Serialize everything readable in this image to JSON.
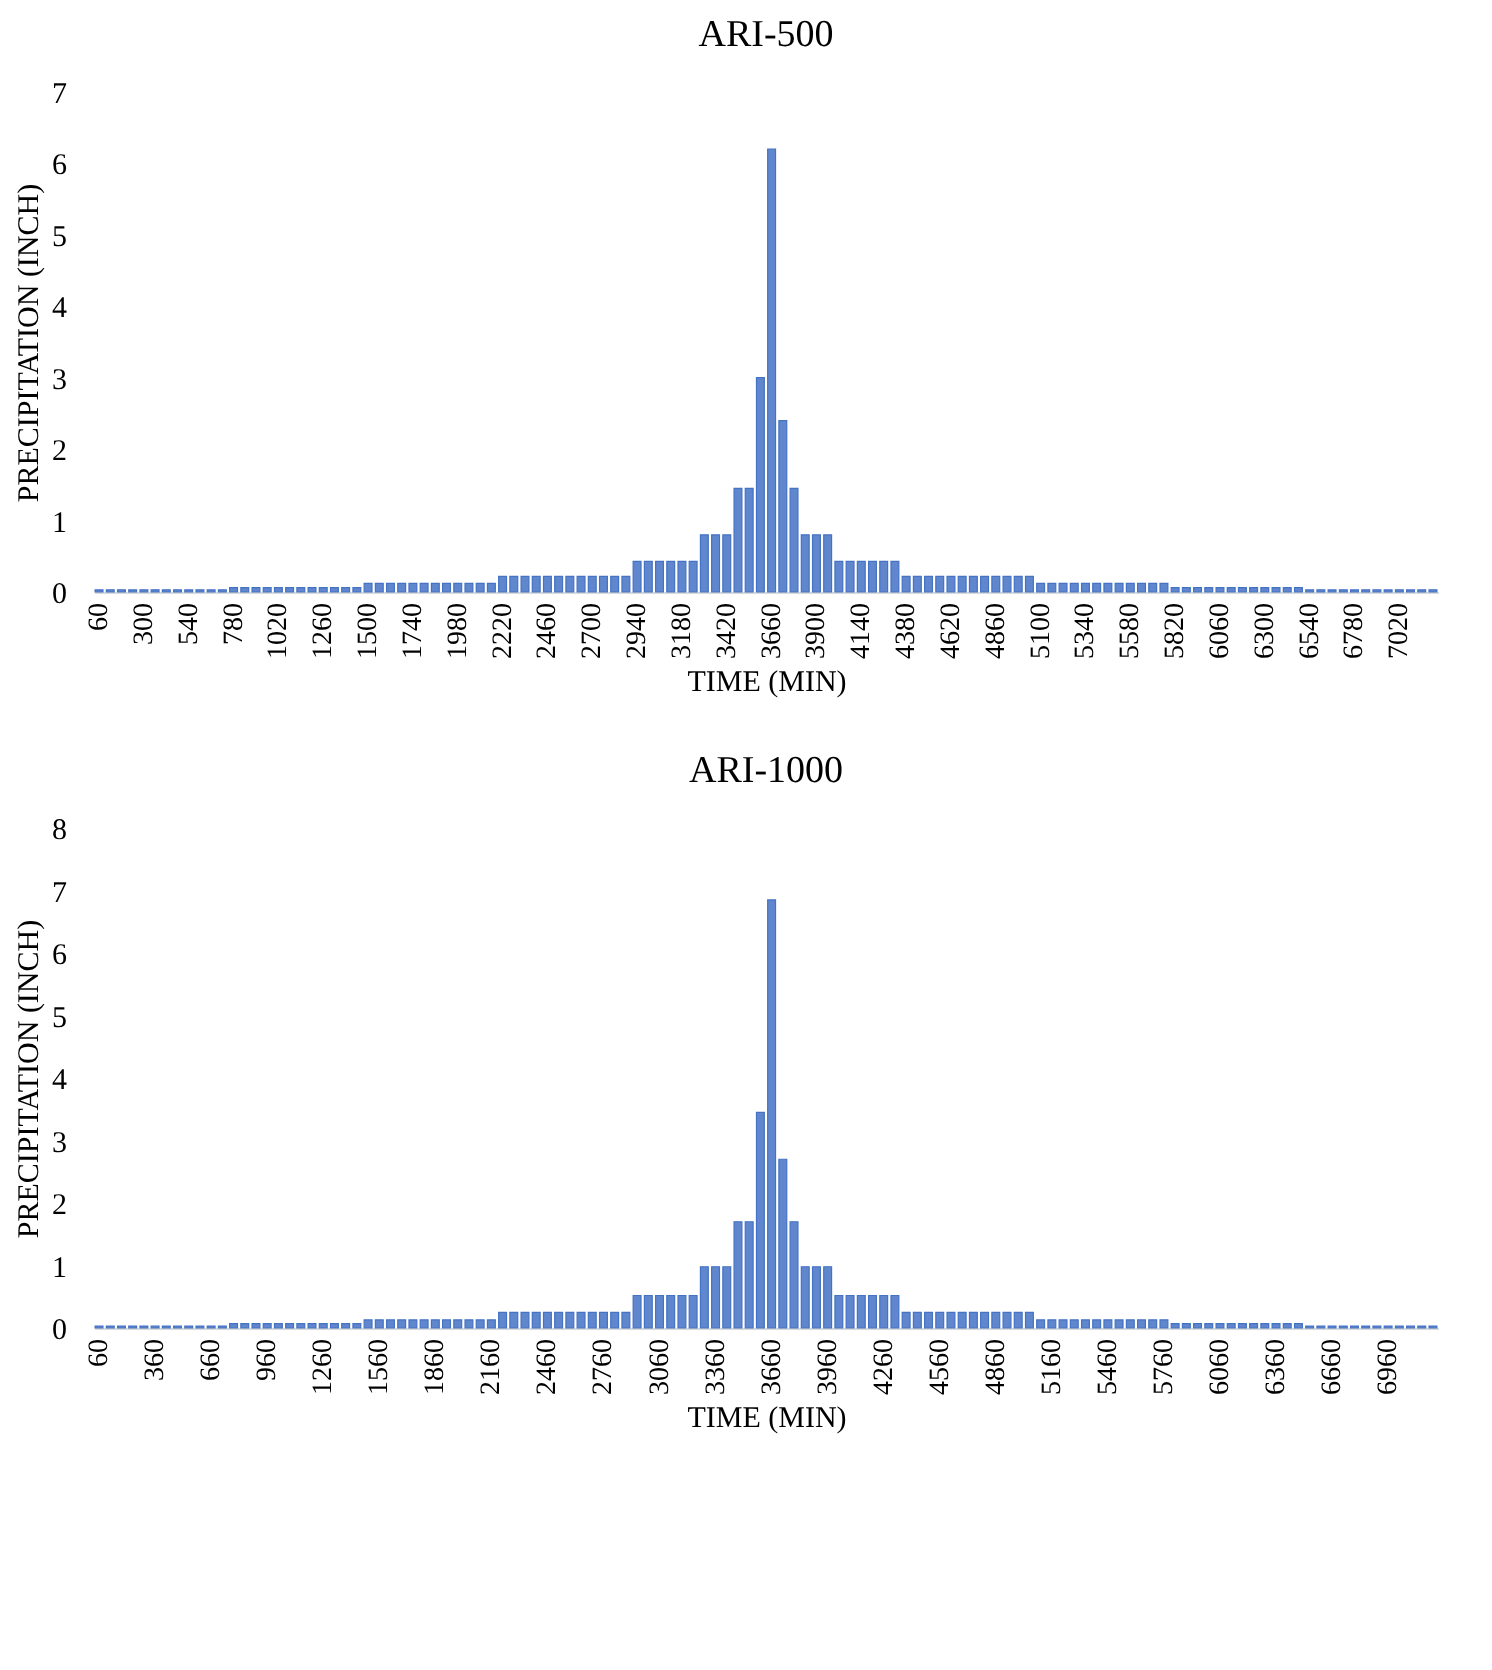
{
  "chart_data": [
    {
      "type": "bar",
      "title": "ARI-500",
      "xlabel": "TIME (MIN)",
      "ylabel": "PRECIPITATION (INCH)",
      "color": "#4472c4",
      "ylim": [
        0,
        7
      ],
      "yticks": [
        0,
        1,
        2,
        3,
        4,
        5,
        6,
        7
      ],
      "categories": [
        "60",
        null,
        null,
        null,
        "300",
        null,
        null,
        null,
        "540",
        null,
        null,
        null,
        "780",
        null,
        null,
        null,
        "1020",
        null,
        null,
        null,
        "1260",
        null,
        null,
        null,
        "1500",
        null,
        null,
        null,
        "1740",
        null,
        null,
        null,
        "1980",
        null,
        null,
        null,
        "2220",
        null,
        null,
        null,
        "2460",
        null,
        null,
        null,
        "2700",
        null,
        null,
        null,
        "2940",
        null,
        null,
        null,
        "3180",
        null,
        null,
        null,
        "3420",
        null,
        null,
        null,
        "3660",
        null,
        null,
        null,
        "3900",
        null,
        null,
        null,
        "4140",
        null,
        null,
        null,
        "4380",
        null,
        null,
        null,
        "4620",
        null,
        null,
        null,
        "4860",
        null,
        null,
        null,
        "5100",
        null,
        null,
        null,
        "5340",
        null,
        null,
        null,
        "5580",
        null,
        null,
        null,
        "5820",
        null,
        null,
        null,
        "6060",
        null,
        null,
        null,
        "6300",
        null,
        null,
        null,
        "6540",
        null,
        null,
        null,
        "6780",
        null,
        null,
        null,
        "7020",
        null,
        null,
        null
      ],
      "values": [
        0.03,
        0.03,
        0.03,
        0.03,
        0.03,
        0.03,
        0.03,
        0.03,
        0.03,
        0.03,
        0.03,
        0.03,
        0.06,
        0.06,
        0.06,
        0.06,
        0.06,
        0.06,
        0.06,
        0.06,
        0.06,
        0.06,
        0.06,
        0.06,
        0.12,
        0.12,
        0.12,
        0.12,
        0.12,
        0.12,
        0.12,
        0.12,
        0.12,
        0.12,
        0.12,
        0.12,
        0.22,
        0.22,
        0.22,
        0.22,
        0.22,
        0.22,
        0.22,
        0.22,
        0.22,
        0.22,
        0.22,
        0.22,
        0.43,
        0.43,
        0.43,
        0.43,
        0.43,
        0.43,
        0.8,
        0.8,
        0.8,
        1.45,
        1.45,
        3,
        6.2,
        2.4,
        1.45,
        0.8,
        0.8,
        0.8,
        0.43,
        0.43,
        0.43,
        0.43,
        0.43,
        0.43,
        0.22,
        0.22,
        0.22,
        0.22,
        0.22,
        0.22,
        0.22,
        0.22,
        0.22,
        0.22,
        0.22,
        0.22,
        0.12,
        0.12,
        0.12,
        0.12,
        0.12,
        0.12,
        0.12,
        0.12,
        0.12,
        0.12,
        0.12,
        0.12,
        0.06,
        0.06,
        0.06,
        0.06,
        0.06,
        0.06,
        0.06,
        0.06,
        0.06,
        0.06,
        0.06,
        0.06,
        0.03,
        0.03,
        0.03,
        0.03,
        0.03,
        0.03,
        0.03,
        0.03,
        0.03,
        0.03,
        0.03,
        0.03
      ]
    },
    {
      "type": "bar",
      "title": "ARI-1000",
      "xlabel": "TIME (MIN)",
      "ylabel": "PRECIPITATION (INCH)",
      "color": "#4472c4",
      "ylim": [
        0,
        8
      ],
      "yticks": [
        0,
        1,
        2,
        3,
        4,
        5,
        6,
        7,
        8
      ],
      "categories": [
        "60",
        null,
        null,
        null,
        null,
        "360",
        null,
        null,
        null,
        null,
        "660",
        null,
        null,
        null,
        null,
        "960",
        null,
        null,
        null,
        null,
        "1260",
        null,
        null,
        null,
        null,
        "1560",
        null,
        null,
        null,
        null,
        "1860",
        null,
        null,
        null,
        null,
        "2160",
        null,
        null,
        null,
        null,
        "2460",
        null,
        null,
        null,
        null,
        "2760",
        null,
        null,
        null,
        null,
        "3060",
        null,
        null,
        null,
        null,
        "3360",
        null,
        null,
        null,
        null,
        "3660",
        null,
        null,
        null,
        null,
        "3960",
        null,
        null,
        null,
        null,
        "4260",
        null,
        null,
        null,
        null,
        "4560",
        null,
        null,
        null,
        null,
        "4860",
        null,
        null,
        null,
        null,
        "5160",
        null,
        null,
        null,
        null,
        "5460",
        null,
        null,
        null,
        null,
        "5760",
        null,
        null,
        null,
        null,
        "6060",
        null,
        null,
        null,
        null,
        "6360",
        null,
        null,
        null,
        null,
        "6660",
        null,
        null,
        null,
        null,
        "6960",
        null,
        null,
        null,
        null
      ],
      "values": [
        0.03,
        0.03,
        0.03,
        0.03,
        0.03,
        0.03,
        0.03,
        0.03,
        0.03,
        0.03,
        0.03,
        0.03,
        0.07,
        0.07,
        0.07,
        0.07,
        0.07,
        0.07,
        0.07,
        0.07,
        0.07,
        0.07,
        0.07,
        0.07,
        0.13,
        0.13,
        0.13,
        0.13,
        0.13,
        0.13,
        0.13,
        0.13,
        0.13,
        0.13,
        0.13,
        0.13,
        0.25,
        0.25,
        0.25,
        0.25,
        0.25,
        0.25,
        0.25,
        0.25,
        0.25,
        0.25,
        0.25,
        0.25,
        0.52,
        0.52,
        0.52,
        0.52,
        0.52,
        0.52,
        0.98,
        0.98,
        0.98,
        1.7,
        1.7,
        3.45,
        6.85,
        2.7,
        1.7,
        0.98,
        0.98,
        0.98,
        0.52,
        0.52,
        0.52,
        0.52,
        0.52,
        0.52,
        0.25,
        0.25,
        0.25,
        0.25,
        0.25,
        0.25,
        0.25,
        0.25,
        0.25,
        0.25,
        0.25,
        0.25,
        0.13,
        0.13,
        0.13,
        0.13,
        0.13,
        0.13,
        0.13,
        0.13,
        0.13,
        0.13,
        0.13,
        0.13,
        0.07,
        0.07,
        0.07,
        0.07,
        0.07,
        0.07,
        0.07,
        0.07,
        0.07,
        0.07,
        0.07,
        0.07,
        0.03,
        0.03,
        0.03,
        0.03,
        0.03,
        0.03,
        0.03,
        0.03,
        0.03,
        0.03,
        0.03,
        0.03
      ]
    }
  ]
}
